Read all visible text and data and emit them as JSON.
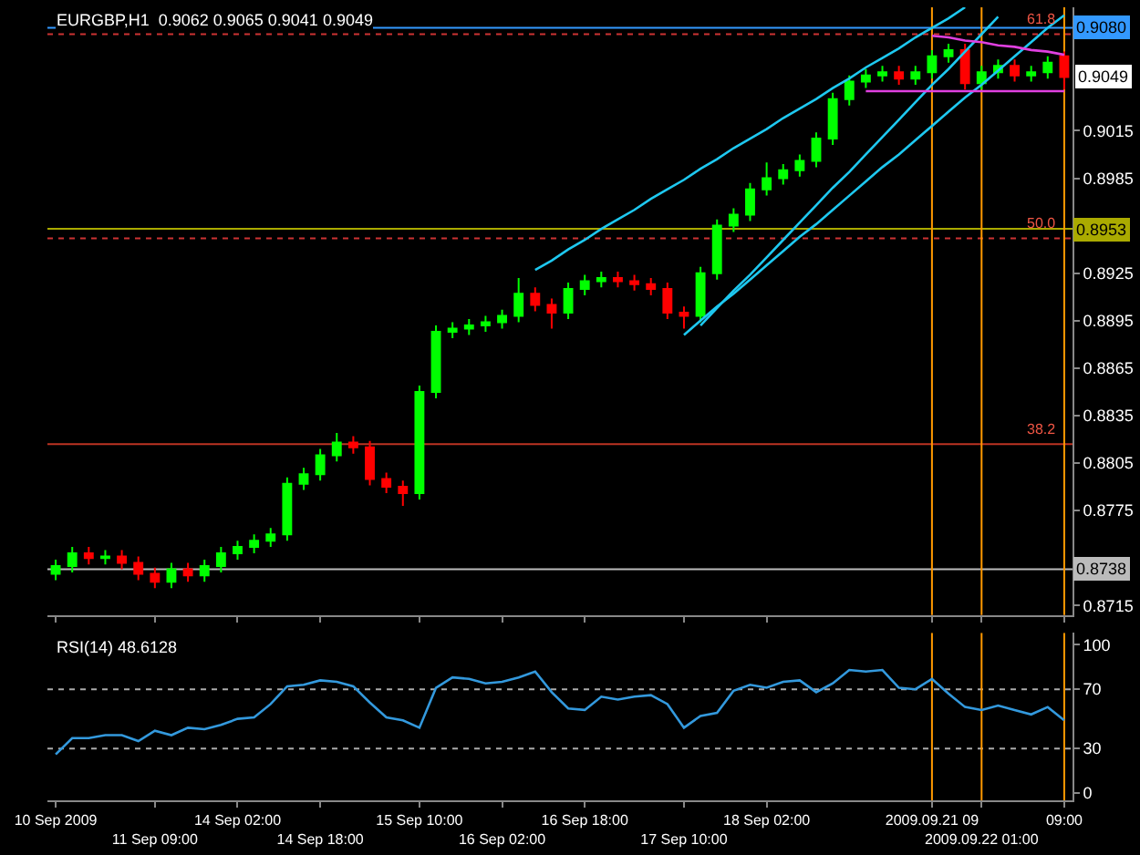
{
  "chart_data": [
    {
      "type": "candlestick",
      "title": "EURGBP,H1  0.9062 0.9065 0.9041 0.9049",
      "categories": [
        "10 Sep 2009",
        null,
        null,
        null,
        null,
        null,
        "11 Sep 09:00",
        null,
        null,
        null,
        null,
        "14 Sep 02:00",
        null,
        null,
        null,
        null,
        "14 Sep 18:00",
        null,
        null,
        null,
        null,
        null,
        "15 Sep 10:00",
        null,
        null,
        null,
        null,
        "16 Sep 02:00",
        null,
        null,
        null,
        null,
        "16 Sep 18:00",
        null,
        null,
        null,
        null,
        null,
        "17 Sep 10:00",
        null,
        null,
        null,
        null,
        "18 Sep 02:00",
        null,
        null,
        null,
        null,
        null,
        null,
        null,
        null,
        null,
        "2009.09.21 09",
        null,
        null,
        "2009.09.22 01:00",
        null,
        null,
        null,
        null,
        "09:00"
      ],
      "ohlc": [
        [
          0.8735,
          0.8744,
          0.8731,
          0.874
        ],
        [
          0.874,
          0.8752,
          0.8736,
          0.8748
        ],
        [
          0.8748,
          0.8752,
          0.8741,
          0.8745
        ],
        [
          0.8745,
          0.875,
          0.8741,
          0.8746
        ],
        [
          0.8746,
          0.875,
          0.8738,
          0.8742
        ],
        [
          0.8742,
          0.8746,
          0.8731,
          0.8735
        ],
        [
          0.8735,
          0.8739,
          0.8726,
          0.873
        ],
        [
          0.873,
          0.8742,
          0.8726,
          0.8738
        ],
        [
          0.8738,
          0.8742,
          0.873,
          0.8734
        ],
        [
          0.8734,
          0.8744,
          0.873,
          0.874
        ],
        [
          0.874,
          0.8752,
          0.8736,
          0.8748
        ],
        [
          0.8748,
          0.8756,
          0.8744,
          0.8752
        ],
        [
          0.8752,
          0.876,
          0.8748,
          0.8756
        ],
        [
          0.8756,
          0.8764,
          0.8752,
          0.876
        ],
        [
          0.876,
          0.8796,
          0.8756,
          0.8792
        ],
        [
          0.8792,
          0.8802,
          0.8788,
          0.8798
        ],
        [
          0.8798,
          0.8814,
          0.8794,
          0.881
        ],
        [
          0.881,
          0.8824,
          0.8806,
          0.8818
        ],
        [
          0.8818,
          0.8822,
          0.8811,
          0.8815
        ],
        [
          0.8815,
          0.8819,
          0.8791,
          0.8795
        ],
        [
          0.8795,
          0.8799,
          0.8786,
          0.879
        ],
        [
          0.879,
          0.8794,
          0.8778,
          0.8786
        ],
        [
          0.8786,
          0.8854,
          0.8782,
          0.885
        ],
        [
          0.885,
          0.8892,
          0.8846,
          0.8888
        ],
        [
          0.8888,
          0.8894,
          0.8884,
          0.889
        ],
        [
          0.889,
          0.8896,
          0.8886,
          0.8892
        ],
        [
          0.8892,
          0.8898,
          0.8888,
          0.8894
        ],
        [
          0.8894,
          0.8902,
          0.889,
          0.8898
        ],
        [
          0.8898,
          0.8922,
          0.8894,
          0.8912
        ],
        [
          0.8912,
          0.8916,
          0.8901,
          0.8905
        ],
        [
          0.8905,
          0.8909,
          0.889,
          0.89
        ],
        [
          0.89,
          0.8919,
          0.8896,
          0.8915
        ],
        [
          0.8915,
          0.8924,
          0.8911,
          0.892
        ],
        [
          0.892,
          0.8926,
          0.8916,
          0.8922
        ],
        [
          0.8922,
          0.8926,
          0.8916,
          0.892
        ],
        [
          0.892,
          0.8924,
          0.8914,
          0.8918
        ],
        [
          0.8918,
          0.8922,
          0.8911,
          0.8915
        ],
        [
          0.8915,
          0.8919,
          0.8896,
          0.89
        ],
        [
          0.89,
          0.8904,
          0.889,
          0.8898
        ],
        [
          0.8898,
          0.8929,
          0.8894,
          0.8925
        ],
        [
          0.8925,
          0.8959,
          0.8921,
          0.8955
        ],
        [
          0.8955,
          0.8966,
          0.8951,
          0.8962
        ],
        [
          0.8962,
          0.8982,
          0.8958,
          0.8978
        ],
        [
          0.8978,
          0.8995,
          0.8974,
          0.8985
        ],
        [
          0.8985,
          0.8994,
          0.8981,
          0.899
        ],
        [
          0.899,
          0.9,
          0.8986,
          0.8996
        ],
        [
          0.8996,
          0.9014,
          0.8992,
          0.901
        ],
        [
          0.901,
          0.9039,
          0.9006,
          0.9035
        ],
        [
          0.9035,
          0.905,
          0.9031,
          0.9046
        ],
        [
          0.9046,
          0.9054,
          0.9042,
          0.905
        ],
        [
          0.905,
          0.9056,
          0.9046,
          0.9052
        ],
        [
          0.9052,
          0.9056,
          0.9044,
          0.9048
        ],
        [
          0.9048,
          0.9056,
          0.9044,
          0.9052
        ],
        [
          0.9052,
          0.9066,
          0.9048,
          0.9062
        ],
        [
          0.9062,
          0.907,
          0.9058,
          0.9066
        ],
        [
          0.9066,
          0.907,
          0.9041,
          0.9045
        ],
        [
          0.9045,
          0.9056,
          0.9041,
          0.9052
        ],
        [
          0.9052,
          0.906,
          0.9048,
          0.9056
        ],
        [
          0.9056,
          0.906,
          0.9046,
          0.905
        ],
        [
          0.905,
          0.9056,
          0.9046,
          0.9052
        ],
        [
          0.9052,
          0.9062,
          0.9048,
          0.9058
        ],
        [
          0.9062,
          0.9065,
          0.9041,
          0.9049
        ]
      ],
      "colors": [
        "#00ff00",
        "#00ff00",
        "#ff0000",
        "#00ff00",
        "#ff0000",
        "#ff0000",
        "#ff0000",
        "#00ff00",
        "#ff0000",
        "#00ff00",
        "#00ff00",
        "#00ff00",
        "#00ff00",
        "#00ff00",
        "#00ff00",
        "#00ff00",
        "#00ff00",
        "#00ff00",
        "#ff0000",
        "#ff0000",
        "#ff0000",
        "#ff0000",
        "#00ff00",
        "#00ff00",
        "#00ff00",
        "#00ff00",
        "#00ff00",
        "#00ff00",
        "#00ff00",
        "#ff0000",
        "#ff0000",
        "#00ff00",
        "#00ff00",
        "#00ff00",
        "#ff0000",
        "#ff0000",
        "#ff0000",
        "#ff0000",
        "#ff0000",
        "#00ff00",
        "#00ff00",
        "#00ff00",
        "#00ff00",
        "#00ff00",
        "#00ff00",
        "#00ff00",
        "#00ff00",
        "#00ff00",
        "#00ff00",
        "#00ff00",
        "#00ff00",
        "#ff0000",
        "#00ff00",
        "#00ff00",
        "#00ff00",
        "#ff0000",
        "#00ff00",
        "#00ff00",
        "#ff0000",
        "#00ff00",
        "#00ff00",
        "#ff0000"
      ],
      "series": [
        {
          "type": "line",
          "color": "#1ec8f0",
          "values": [
            null,
            null,
            null,
            null,
            null,
            null,
            null,
            null,
            null,
            null,
            null,
            null,
            null,
            null,
            null,
            null,
            null,
            null,
            null,
            null,
            null,
            null,
            null,
            null,
            null,
            null,
            null,
            null,
            null,
            0.8927,
            0.8933,
            0.894,
            0.8946,
            0.8953,
            0.8959,
            0.8965,
            0.8972,
            0.8978,
            0.8984,
            0.8991,
            0.8997,
            0.9004,
            0.901,
            0.9016,
            0.9023,
            0.9029,
            0.9035,
            0.9042,
            0.9048,
            0.9055,
            0.9061,
            0.9067,
            0.9074,
            0.908,
            0.9086,
            0.9093,
            null,
            null,
            null,
            null,
            null,
            null
          ]
        },
        {
          "type": "line",
          "color": "#1ec8f0",
          "values": [
            null,
            null,
            null,
            null,
            null,
            null,
            null,
            null,
            null,
            null,
            null,
            null,
            null,
            null,
            null,
            null,
            null,
            null,
            null,
            null,
            null,
            null,
            null,
            null,
            null,
            null,
            null,
            null,
            null,
            null,
            null,
            null,
            null,
            null,
            null,
            null,
            null,
            null,
            0.8886,
            0.8895,
            0.8904,
            0.8912,
            0.8921,
            0.893,
            0.8939,
            0.8948,
            0.8956,
            0.8965,
            0.8974,
            0.8983,
            0.8992,
            0.9,
            0.9009,
            0.9018,
            0.9027,
            0.9036,
            0.9044,
            0.9053,
            0.9062,
            0.9071,
            0.908,
            0.9088
          ]
        },
        {
          "type": "line",
          "color": "#1ec8f0",
          "values": [
            null,
            null,
            null,
            null,
            null,
            null,
            null,
            null,
            null,
            null,
            null,
            null,
            null,
            null,
            null,
            null,
            null,
            null,
            null,
            null,
            null,
            null,
            null,
            null,
            null,
            null,
            null,
            null,
            null,
            null,
            null,
            null,
            null,
            null,
            null,
            null,
            null,
            null,
            null,
            0.8892,
            0.8903,
            0.8914,
            0.8924,
            0.8935,
            0.8946,
            0.8957,
            0.8968,
            0.8979,
            0.8989,
            0.9,
            0.9011,
            0.9022,
            0.9033,
            0.9044,
            0.9054,
            0.9065,
            0.9076,
            0.9087,
            null,
            null,
            null,
            null
          ]
        },
        {
          "type": "line",
          "color": "#e040e0",
          "values": [
            null,
            null,
            null,
            null,
            null,
            null,
            null,
            null,
            null,
            null,
            null,
            null,
            null,
            null,
            null,
            null,
            null,
            null,
            null,
            null,
            null,
            null,
            null,
            null,
            null,
            null,
            null,
            null,
            null,
            null,
            null,
            null,
            null,
            null,
            null,
            null,
            null,
            null,
            null,
            null,
            null,
            null,
            null,
            null,
            null,
            null,
            null,
            null,
            null,
            0.904,
            0.904,
            0.904,
            0.904,
            0.904,
            0.904,
            0.904,
            0.904,
            0.904,
            0.904,
            0.904,
            0.904,
            0.904
          ]
        },
        {
          "type": "line",
          "color": "#e040e0",
          "values": [
            null,
            null,
            null,
            null,
            null,
            null,
            null,
            null,
            null,
            null,
            null,
            null,
            null,
            null,
            null,
            null,
            null,
            null,
            null,
            null,
            null,
            null,
            null,
            null,
            null,
            null,
            null,
            null,
            null,
            null,
            null,
            null,
            null,
            null,
            null,
            null,
            null,
            null,
            null,
            null,
            null,
            null,
            null,
            null,
            null,
            null,
            null,
            null,
            null,
            null,
            null,
            null,
            null,
            0.9075,
            0.9074,
            0.9072,
            0.9071,
            0.9069,
            0.9068,
            0.9066,
            0.9065,
            0.9063
          ]
        }
      ],
      "ylim": [
        0.8709,
        0.9093
      ],
      "yticks": [
        0.8715,
        0.8775,
        0.8805,
        0.8835,
        0.8865,
        0.8895,
        0.8925,
        0.8985,
        0.9015
      ],
      "tick_labels": "y",
      "annotations": [
        {
          "text": "0.9049",
          "x": "09:00",
          "y": 0.9049
        },
        {
          "text": "61.8",
          "y": 0.9076
        },
        {
          "text": "50.0",
          "y": 0.8947
        },
        {
          "text": "38.2",
          "y": 0.8817
        }
      ],
      "ref_lines": [
        {
          "axis": "y",
          "value": 0.908,
          "label": "0.9080",
          "color": "#3399ff",
          "line_style": "solid"
        },
        {
          "axis": "y",
          "value": 0.9076,
          "color": "#cc3333",
          "line_style": "dotted"
        },
        {
          "axis": "y",
          "value": 0.8953,
          "label": "0.8953",
          "color": "#aaaa00",
          "line_style": "solid"
        },
        {
          "axis": "y",
          "value": 0.8947,
          "color": "#cc3333",
          "line_style": "dotted"
        },
        {
          "axis": "y",
          "value": 0.8817,
          "color": "#bb3322",
          "line_style": "solid"
        },
        {
          "axis": "y",
          "value": 0.8738,
          "label": "0.8738",
          "color": "#bbbbbb",
          "line_style": "solid"
        },
        {
          "axis": "x",
          "value": "2009.09.21 09",
          "color": "#ff9900",
          "line_style": "solid"
        },
        {
          "axis": "x",
          "value": "2009.09.22 01:00",
          "color": "#ff9900",
          "line_style": "solid"
        },
        {
          "axis": "x",
          "value": "09:00",
          "color": "#ff9900",
          "line_style": "solid"
        }
      ],
      "grid": false
    },
    {
      "type": "line",
      "title": "RSI(14) 48.6128",
      "categories": [
        "10 Sep 2009",
        null,
        null,
        null,
        null,
        null,
        "11 Sep 09:00",
        null,
        null,
        null,
        null,
        "14 Sep 02:00",
        null,
        null,
        null,
        null,
        "14 Sep 18:00",
        null,
        null,
        null,
        null,
        null,
        "15 Sep 10:00",
        null,
        null,
        null,
        null,
        "16 Sep 02:00",
        null,
        null,
        null,
        null,
        "16 Sep 18:00",
        null,
        null,
        null,
        null,
        null,
        "17 Sep 10:00",
        null,
        null,
        null,
        null,
        "18 Sep 02:00",
        null,
        null,
        null,
        null,
        null,
        null,
        null,
        null,
        null,
        "2009.09.21 09",
        null,
        null,
        "2009.09.22 01:00",
        null,
        null,
        null,
        null,
        "09:00"
      ],
      "series": [
        {
          "color": "#3399dd",
          "values": [
            26,
            37,
            37,
            39,
            39,
            35,
            42,
            39,
            44,
            43,
            46,
            50,
            51,
            60,
            72,
            73,
            76,
            75,
            72,
            61,
            51,
            49,
            44,
            71,
            78,
            77,
            74,
            75,
            78,
            82,
            68,
            57,
            56,
            65,
            63,
            65,
            66,
            60,
            44,
            52,
            54,
            69,
            73,
            71,
            75,
            76,
            68,
            74,
            83,
            82,
            83,
            71,
            70,
            77,
            67,
            58,
            56,
            59,
            56,
            53,
            58,
            49
          ]
        }
      ],
      "ylim": [
        -5,
        108
      ],
      "yticks": [
        0,
        30,
        70,
        100
      ],
      "ref_lines": [
        {
          "axis": "y",
          "value": 70,
          "color": "#aaaaaa",
          "line_style": "dotted"
        },
        {
          "axis": "y",
          "value": 30,
          "color": "#aaaaaa",
          "line_style": "dotted"
        },
        {
          "axis": "x",
          "value": "2009.09.21 09",
          "color": "#ff9900",
          "line_style": "solid"
        },
        {
          "axis": "x",
          "value": "2009.09.22 01:00",
          "color": "#ff9900",
          "line_style": "solid"
        },
        {
          "axis": "x",
          "value": "09:00",
          "color": "#ff9900",
          "line_style": "solid"
        }
      ],
      "grid": false,
      "marker": "none",
      "line_style": "solid"
    }
  ]
}
